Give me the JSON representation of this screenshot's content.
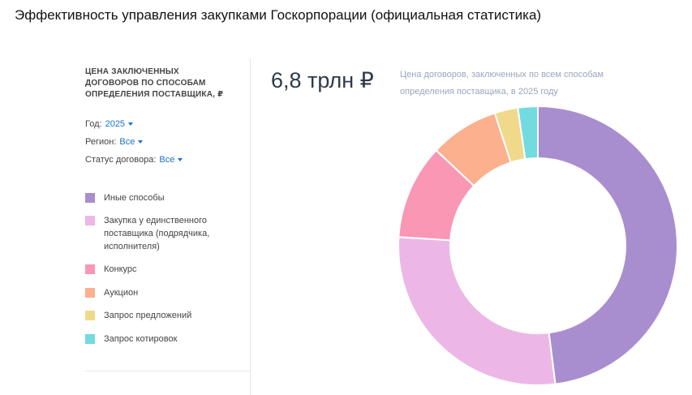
{
  "page_title": "Эффективность управления закупками Госкорпорации (официальная статистика)",
  "panel": {
    "heading": "ЦЕНА ЗАКЛЮЧЕННЫХ ДОГОВОРОВ ПО СПОСОБАМ ОПРЕДЕЛЕНИЯ ПОСТАВЩИКА, ₽",
    "filters": [
      {
        "label": "Год:",
        "value": "2025"
      },
      {
        "label": "Регион:",
        "value": "Все"
      },
      {
        "label": "Статус договора:",
        "value": "Все"
      }
    ]
  },
  "summary": {
    "total": "6,8 трлн ₽",
    "description": "Цена договоров, заключенных по всем способам определения поставщика, в 2025 году"
  },
  "chart_data": {
    "type": "donut",
    "categories": [
      "Иные способы",
      "Закупка у единственного поставщика (подрядчика, исполнителя)",
      "Конкурс",
      "Аукцион",
      "Запрос предложений",
      "Запрос котировок"
    ],
    "values": [
      48,
      28,
      11,
      8,
      2.7,
      2.3
    ],
    "colors": [
      "#a98ecf",
      "#ecb7e6",
      "#f997b4",
      "#fbb08e",
      "#f0d98a",
      "#72dbe0"
    ]
  }
}
